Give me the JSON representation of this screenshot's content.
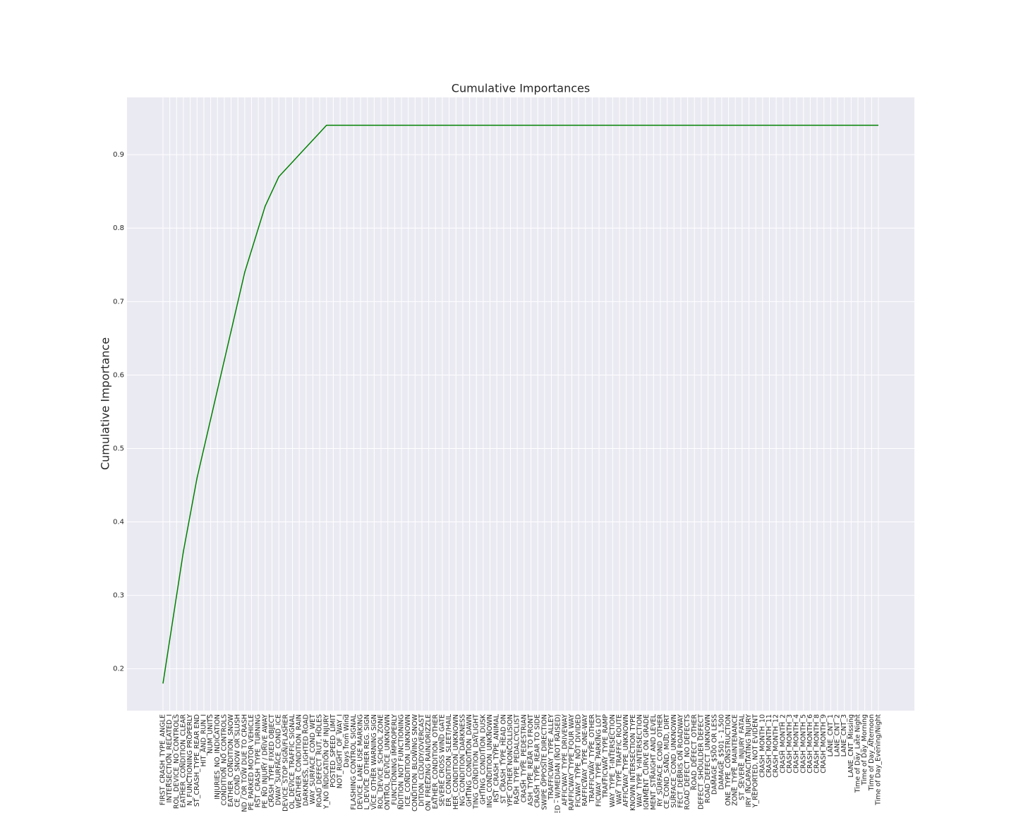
{
  "chart_data": {
    "type": "line",
    "title": "Cumulative Importances",
    "y_label": "Cumulative Importance",
    "categories": [
      "FIRST_CRASH_TYPE_ANGLE",
      "INTERSECTION_RELATED_I",
      "ROL_DEVICE_NO CONTROLS",
      "EATHER_CONDITION_CLEAR",
      "N_FUNCTIONING PROPERLY",
      "ST_CRASH_TYPE_REAR END",
      "HIT_AND_RUN_I",
      "NUM_UNITS",
      "INJURIES_NO_INDICATION",
      "CONDITION_NO CONTROLS",
      "EATHER_CONDITION_SNOW",
      "CE_COND_SNOW OR SLUSH",
      "ND / OR TOW DUE TO CRASH",
      "PE_PARKED MOTOR VEHICLE",
      "RST_CRASH_TYPE_TURNING",
      "PE_NO INJURY / DRIVE AWAY",
      "CRASH_TYPE_FIXED OBJECT",
      "DWAY_SURFACE_COND_ICE",
      "DEVICE_STOP SIGN/FLASHER",
      "OL_DEVICE_TRAFFIC SIGNAL",
      "WEATHER_CONDITION_RAIN",
      "DARKNESS, LIGHTED ROAD",
      "WAY_SURFACE_COND_WET",
      "ROAD_DEFECT_RUT, HOLES",
      "Y_NO INDICATION OF INJURY",
      "POSTED_SPEED_LIMIT",
      "NOT_RIGHT_OF_WAY_I",
      "Days from Wind",
      "FLASHING CONTROL SIGNAL",
      "DEVICE_LANE USE MARKING",
      "L_DEVICE_OTHER REG. SIGN",
      "VICE_OTHER WARNING SIGN",
      "ROL_DEVICE_SCHOOL ZONE",
      "ONTROL_DEVICE_UNKNOWN",
      "_FUNCTIONING IMPROPERLY",
      "NDITION_NOT FUNCTIONING",
      "ICE_CONDITION_UNKNOWN",
      "CONDITION_BLOWING SNOW",
      "DITION_CLOUDY/OVERCAST",
      "ON_FREEZING RAIN/DRIZZLE",
      "EATHER_CONDITION_OTHER",
      "SEVERE CROSS WIND GATE",
      "ER_CONDITION_SLEET/HAIL",
      "HER_CONDITION_UNKNOWN",
      "NG_CONDITION_DARKNESS",
      "GHTING_CONDITION_DAWN",
      "TING_CONDITION_DAYLIGHT",
      "GHTING_CONDITION_DUSK",
      "ING_CONDITION_UNKNOWN",
      "RST_CRASH_TYPE_ANIMAL",
      "ST_CRASH_TYPE_HEAD ON",
      "YPE_OTHER NONCOLLISION",
      "RASH_TYPE_PEDALCYCLIST",
      "CRASH_TYPE_PEDESTRIAN",
      "ASH_TYPE_REAR TO FRONT",
      "CRASH_TYPE_REAR TO SIDE",
      "SWIPE OPPOSITE DIRECTION",
      "_TRAFFICWAY_TYPE_ALLEY",
      "ED - W/MEDIAN (NOT RAISED)",
      "AFFICWAY_TYPE_DRIVEWAY",
      "RAFFICWAY_TYPE_FOUR WAY",
      "FICWAY_TYPE_NOT DIVIDED",
      "RAFFICWAY_TYPE_ONE-WAY",
      "TRAFFICWAY_TYPE_OTHER",
      "FICWAY_TYPE_PARKING LOT",
      "TRAFFICWAY_TYPE_RAMP",
      "WAY_TYPE_T-INTERSECTION",
      "WAY_TYPE_TRAFFIC ROUTE",
      "AFFICWAY_TYPE_UNKNOWN",
      "KNOWN INTERSECTION TYPE",
      "WAY_TYPE_Y-INTERSECTION",
      "IGNMENT_CURVE ON GRADE",
      "MENT_STRAIGHT AND LEVEL",
      "RY_SURFACE_COND_OTHER",
      "CE_COND_SAND, MUD, DIRT",
      "SURFACE_COND_UNKNOWN",
      "FECT_DEBRIS ON ROADWAY",
      "ROAD_DEFECT_NO DEFECTS",
      "ROAD_DEFECT_OTHER",
      "DEFECT_SHOULDER DEFECT",
      "ROAD_DEFECT_UNKNOWN",
      "DAMAGE_$500 OR LESS",
      "DAMAGE_$501 - 1,500",
      "ONE_TYPE_CONSTRUCTION",
      "ZONE_TYPE_MAINTENANCE",
      "ST_SEVERE_INJURY_FATAL",
      "IRY_INCAPACITATING INJURY",
      "Y_REPORTED, NOT EVIDENT",
      "CRASH_MONTH_10",
      "CRASH_MONTH_11",
      "CRASH_MONTH_12",
      "CRASH_MONTH_2",
      "CRASH_MONTH_3",
      "CRASH_MONTH_4",
      "CRASH_MONTH_5",
      "CRASH_MONTH_6",
      "CRASH_MONTH_8",
      "CRASH_MONTH_9",
      "LANE_CNT_1",
      "LANE_CNT_2",
      "LANE_CNT_3",
      "LANE_CNT_Missing",
      "Time of Day_Late Night",
      "Time of Day_Morning",
      "Time of Day_Afternoon",
      "Time of Day_Evening/Night"
    ],
    "values": [
      0.18,
      0.24,
      0.3,
      0.36,
      0.41,
      0.46,
      0.5,
      0.54,
      0.58,
      0.62,
      0.66,
      0.7,
      0.74,
      0.77,
      0.8,
      0.83,
      0.85,
      0.87,
      0.88,
      0.89,
      0.9,
      0.91,
      0.92,
      0.93,
      0.94,
      0.94,
      0.94,
      0.94,
      0.94,
      0.94,
      0.94,
      0.94,
      0.94,
      0.94,
      0.94,
      0.94,
      0.94,
      0.94,
      0.94,
      0.94,
      0.94,
      0.94,
      0.94,
      0.94,
      0.94,
      0.94,
      0.94,
      0.94,
      0.94,
      0.94,
      0.94,
      0.94,
      0.94,
      0.94,
      0.94,
      0.94,
      0.94,
      0.94,
      0.94,
      0.94,
      0.94,
      0.94,
      0.94,
      0.94,
      0.94,
      0.94,
      0.94,
      0.94,
      0.94,
      0.94,
      0.94,
      0.94,
      0.94,
      0.94,
      0.94,
      0.94,
      0.94,
      0.94,
      0.94,
      0.94,
      0.94,
      0.94,
      0.94,
      0.94,
      0.94,
      0.94,
      0.94,
      0.94,
      0.94,
      0.94,
      0.94,
      0.94,
      0.94,
      0.94,
      0.94,
      0.94,
      0.94,
      0.94,
      0.94,
      0.94,
      0.94,
      0.94,
      0.94,
      0.94,
      0.94,
      0.94
    ],
    "color": "#008000",
    "ylim": [
      0.143,
      0.978
    ],
    "yticks": [
      0.2,
      0.3,
      0.4,
      0.5,
      0.6,
      0.7,
      0.8,
      0.9
    ],
    "grid": true
  }
}
